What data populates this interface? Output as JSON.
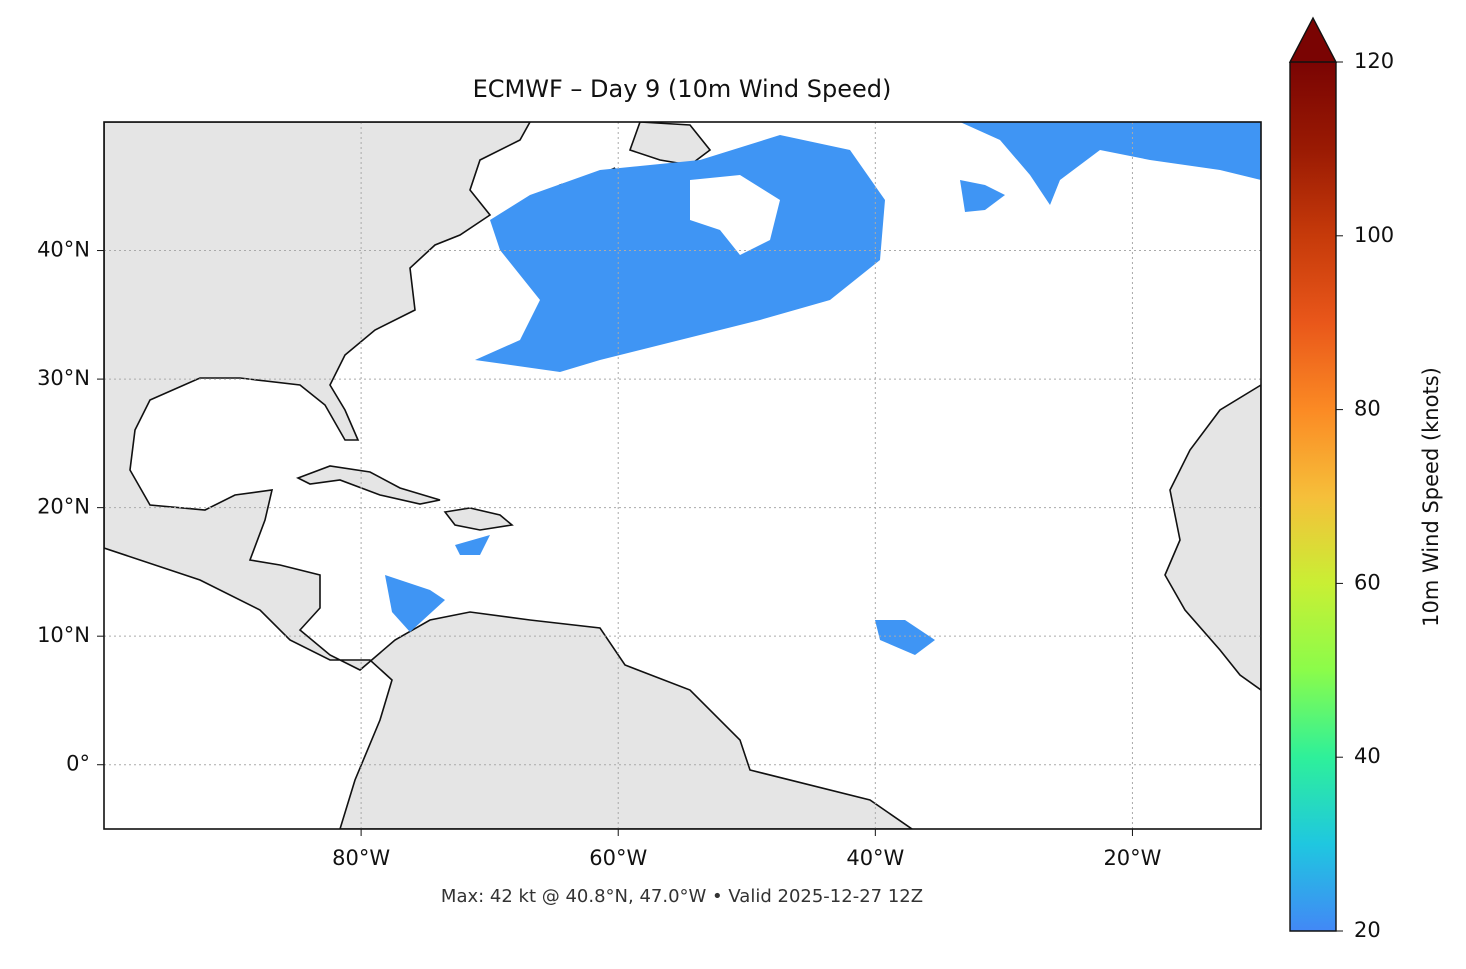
{
  "map": {
    "title": "ECMWF – Day 9 (10m Wind Speed)",
    "lonlim": [
      -100,
      -10
    ],
    "latlim": [
      -5,
      50
    ],
    "lonticks": [
      {
        "value": -80,
        "label": "80°W"
      },
      {
        "value": -60,
        "label": "60°W"
      },
      {
        "value": -40,
        "label": "40°W"
      },
      {
        "value": -20,
        "label": "20°W"
      }
    ],
    "latticks": [
      {
        "value": 0,
        "label": "0°"
      },
      {
        "value": 10,
        "label": "10°N"
      },
      {
        "value": 20,
        "label": "20°N"
      },
      {
        "value": 30,
        "label": "30°N"
      },
      {
        "value": 40,
        "label": "40°N"
      }
    ],
    "grid": true,
    "footer": "Max: 42 kt @ 40.8°N, 47.0°W • Valid 2025-12-27 12Z",
    "colorbar": {
      "label": "10m Wind Speed (knots)",
      "lim": [
        20,
        120
      ],
      "ticks": [
        20,
        40,
        60,
        80,
        100,
        120
      ]
    }
  }
}
